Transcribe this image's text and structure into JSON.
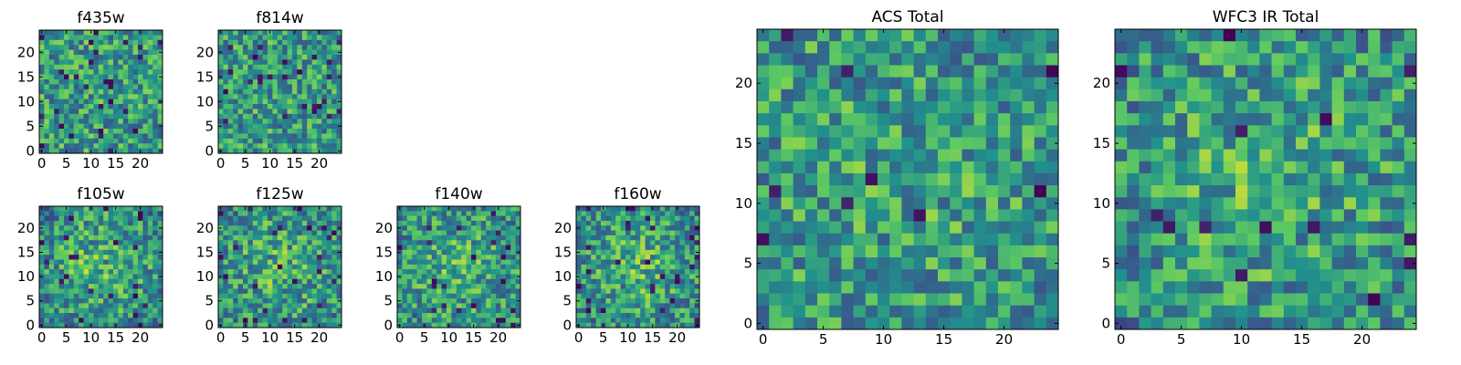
{
  "figure": {
    "description_colormap": "viridis",
    "colormap_stops": [
      "#440154",
      "#3b528b",
      "#21918c",
      "#5ec962",
      "#fde725"
    ]
  },
  "chart_data": [
    {
      "type": "heatmap",
      "title": "f435w",
      "grid_size": 25,
      "xticks": [
        0,
        5,
        10,
        15,
        20
      ],
      "yticks": [
        0,
        5,
        10,
        15,
        20
      ],
      "center_weight": 0.0,
      "seed": 11,
      "dark_fraction": 0.04
    },
    {
      "type": "heatmap",
      "title": "f814w",
      "grid_size": 25,
      "xticks": [
        0,
        5,
        10,
        15,
        20
      ],
      "yticks": [
        0,
        5,
        10,
        15,
        20
      ],
      "center_weight": 0.05,
      "seed": 23,
      "dark_fraction": 0.04
    },
    {
      "type": "heatmap",
      "title": "f105w",
      "grid_size": 25,
      "xticks": [
        0,
        5,
        10,
        15,
        20
      ],
      "yticks": [
        0,
        5,
        10,
        15,
        20
      ],
      "center_weight": 0.45,
      "seed": 37,
      "dark_fraction": 0.03
    },
    {
      "type": "heatmap",
      "title": "f125w",
      "grid_size": 25,
      "xticks": [
        0,
        5,
        10,
        15,
        20
      ],
      "yticks": [
        0,
        5,
        10,
        15,
        20
      ],
      "center_weight": 0.3,
      "seed": 41,
      "dark_fraction": 0.04
    },
    {
      "type": "heatmap",
      "title": "f140w",
      "grid_size": 25,
      "xticks": [
        0,
        5,
        10,
        15,
        20
      ],
      "yticks": [
        0,
        5,
        10,
        15,
        20
      ],
      "center_weight": 0.35,
      "seed": 53,
      "dark_fraction": 0.04
    },
    {
      "type": "heatmap",
      "title": "f160w",
      "grid_size": 25,
      "xticks": [
        0,
        5,
        10,
        15,
        20
      ],
      "yticks": [
        0,
        5,
        10,
        15,
        20
      ],
      "center_weight": 0.4,
      "seed": 67,
      "dark_fraction": 0.03
    },
    {
      "type": "heatmap",
      "title": "ACS Total",
      "grid_size": 25,
      "xticks": [
        0,
        5,
        10,
        15,
        20
      ],
      "yticks": [
        0,
        5,
        10,
        15,
        20
      ],
      "center_weight": 0.1,
      "seed": 79,
      "dark_fraction": 0.025
    },
    {
      "type": "heatmap",
      "title": "WFC3 IR Total",
      "grid_size": 25,
      "xticks": [
        0,
        5,
        10,
        15,
        20
      ],
      "yticks": [
        0,
        5,
        10,
        15,
        20
      ],
      "center_weight": 0.3,
      "seed": 97,
      "dark_fraction": 0.025
    }
  ]
}
